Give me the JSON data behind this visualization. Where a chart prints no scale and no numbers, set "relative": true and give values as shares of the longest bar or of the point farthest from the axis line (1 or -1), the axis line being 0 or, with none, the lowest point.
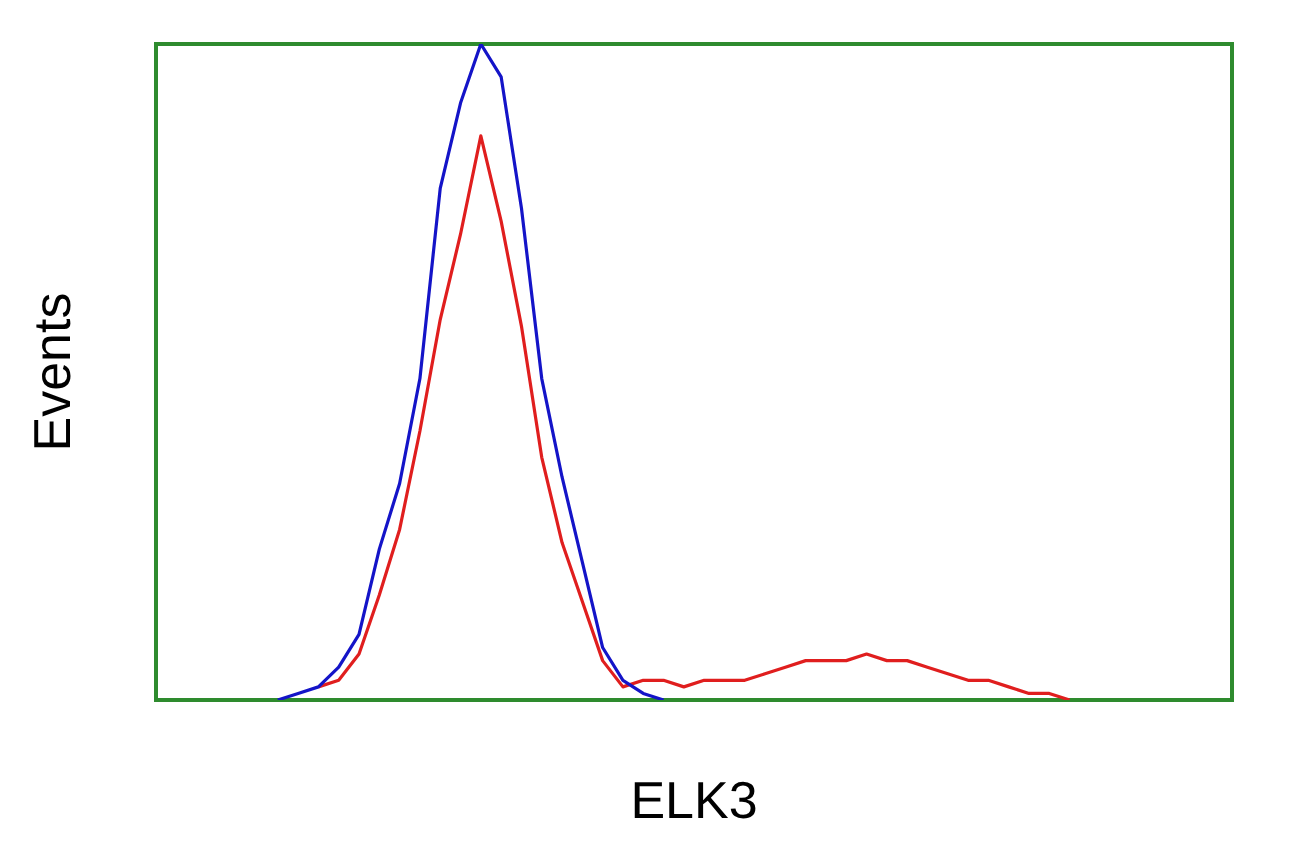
{
  "chart_data": {
    "type": "line",
    "xlabel": "ELK3",
    "ylabel": "Events",
    "relative": true,
    "marker": "none",
    "line_style": "solid",
    "categories": [
      null,
      null,
      null,
      null,
      null,
      null,
      null,
      null,
      null,
      null,
      null,
      null,
      null,
      null,
      null,
      null,
      null,
      null,
      null,
      null,
      null,
      null,
      null,
      null,
      null,
      null,
      null,
      null,
      null,
      null,
      null,
      null,
      null,
      null,
      null,
      null,
      null,
      null,
      null,
      null,
      null,
      null,
      null,
      null,
      null,
      null,
      null,
      null,
      null,
      null,
      null,
      null,
      null,
      null
    ],
    "series": [
      {
        "color": "#1414c8",
        "values": [
          null,
          null,
          null,
          null,
          null,
          null,
          0,
          0.01,
          0.02,
          0.05,
          0.1,
          0.23,
          0.33,
          0.49,
          0.78,
          0.91,
          1,
          0.95,
          0.75,
          0.49,
          0.34,
          0.21,
          0.08,
          0.03,
          0.01,
          0,
          null,
          null,
          null,
          null,
          null,
          null,
          null,
          null,
          null,
          null,
          null,
          null,
          null,
          null,
          null,
          null,
          null,
          null,
          null,
          null,
          null,
          null,
          null,
          null,
          null,
          null,
          null,
          null
        ]
      },
      {
        "color": "#e01e1e",
        "values": [
          null,
          null,
          null,
          null,
          null,
          null,
          null,
          null,
          0.02,
          0.03,
          0.07,
          0.16,
          0.26,
          0.41,
          0.58,
          0.71,
          0.86,
          0.73,
          0.57,
          0.37,
          0.24,
          0.15,
          0.06,
          0.02,
          0.03,
          0.03,
          0.02,
          0.03,
          0.03,
          0.03,
          0.04,
          0.05,
          0.06,
          0.06,
          0.06,
          0.07,
          0.06,
          0.06,
          0.05,
          0.04,
          0.03,
          0.03,
          0.02,
          0.01,
          0.01,
          0,
          null,
          null,
          null,
          null,
          null,
          null,
          null,
          null
        ]
      }
    ]
  }
}
